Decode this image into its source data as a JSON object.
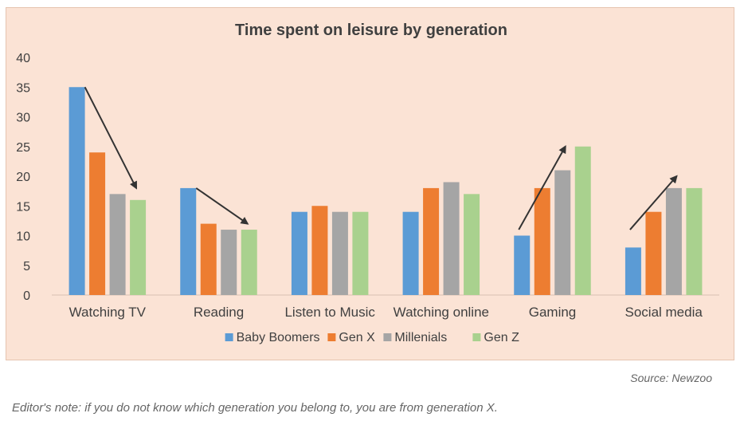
{
  "colors": {
    "Baby Boomers": "#5b9bd5",
    "Gen X": "#ed7d31",
    "Millenials": "#a5a5a5",
    "Gen Z": "#a9d18e",
    "panel_bg": "#fbe3d5",
    "arrow": "#333333"
  },
  "chart_data": {
    "type": "bar",
    "title": "Time spent on leisure by generation",
    "xlabel": "",
    "ylabel": "",
    "ylim": [
      0,
      40
    ],
    "yticks": [
      0,
      5,
      10,
      15,
      20,
      25,
      30,
      35,
      40
    ],
    "grid": false,
    "legend_position": "bottom",
    "categories": [
      "Watching TV",
      "Reading",
      "Listen to Music",
      "Watching online",
      "Gaming",
      "Social media"
    ],
    "series": [
      {
        "name": "Baby Boomers",
        "values": [
          35,
          18,
          14,
          14,
          10,
          8
        ]
      },
      {
        "name": "Gen X",
        "values": [
          24,
          12,
          15,
          18,
          18,
          14
        ]
      },
      {
        "name": "Millenials",
        "values": [
          17,
          11,
          14,
          19,
          21,
          18
        ]
      },
      {
        "name": "Gen Z",
        "values": [
          16,
          11,
          14,
          17,
          25,
          18
        ]
      }
    ],
    "annotations": [
      {
        "type": "arrow",
        "category": "Watching TV",
        "direction": "down",
        "from_value": 35,
        "to_value": 18
      },
      {
        "type": "arrow",
        "category": "Reading",
        "direction": "down",
        "from_value": 18,
        "to_value": 12
      },
      {
        "type": "arrow",
        "category": "Gaming",
        "direction": "up",
        "from_value": 11,
        "to_value": 25
      },
      {
        "type": "arrow",
        "category": "Social media",
        "direction": "up",
        "from_value": 11,
        "to_value": 20
      }
    ]
  },
  "footer": {
    "source": "Source: Newzoo",
    "editors_note": "Editor's note: if you do not know which generation you belong to, you are from generation X."
  }
}
